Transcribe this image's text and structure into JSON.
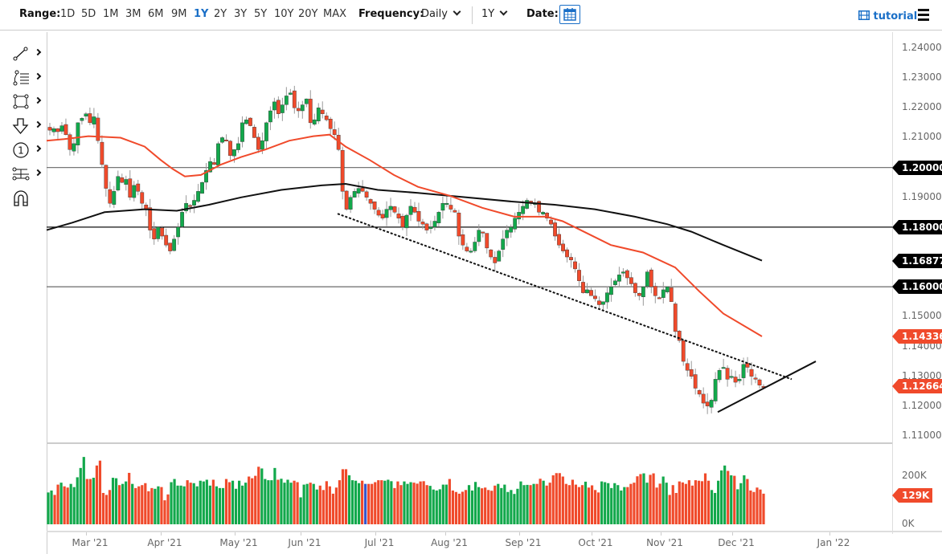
{
  "toolbar": {
    "range_label": "Range:",
    "ranges": [
      "1D",
      "5D",
      "1M",
      "3M",
      "6M",
      "9M",
      "1Y",
      "2Y",
      "3Y",
      "5Y",
      "10Y",
      "20Y",
      "MAX"
    ],
    "active_range": "1Y",
    "frequency_label": "Frequency:",
    "frequency_value": "Daily",
    "period_value": "1Y",
    "date_label": "Date:",
    "tutorial_label": "tutorial",
    "accent_color": "#1a6fc7"
  },
  "drawing_tools": [
    {
      "name": "trend-line-tool",
      "icon": "line-icon"
    },
    {
      "name": "fibonacci-tool",
      "icon": "fib-lines-icon"
    },
    {
      "name": "shape-tool",
      "icon": "rectangle-icon"
    },
    {
      "name": "arrow-tool",
      "icon": "down-arrow-icon"
    },
    {
      "name": "annotation-tool",
      "icon": "number-circle-icon"
    },
    {
      "name": "measure-tool",
      "icon": "measure-icon"
    },
    {
      "name": "magnet-tool",
      "icon": "magnet-icon"
    }
  ],
  "colors": {
    "up": "#12a84b",
    "down": "#f04a2b",
    "ma_fast": "#f04a2b",
    "ma_slow": "#111111",
    "volume_highlight": "#3355cc"
  },
  "chart_data": {
    "type": "candlestick",
    "title": "",
    "frequency": "Daily",
    "range": "1Y",
    "y_axis": {
      "ticks": [
        "1.24000",
        "1.23000",
        "1.22000",
        "1.21000",
        "1.19000",
        "1.15000",
        "1.14000",
        "1.13000",
        "1.12000",
        "1.11000"
      ],
      "ylim": [
        1.107,
        1.243
      ]
    },
    "price_tags": [
      {
        "value": "1.20000",
        "kind": "horizontal-line",
        "color": "black"
      },
      {
        "value": "1.18000",
        "kind": "horizontal-line",
        "color": "black"
      },
      {
        "value": "1.16877",
        "kind": "slow-ma",
        "color": "black"
      },
      {
        "value": "1.16000",
        "kind": "horizontal-line",
        "color": "black"
      },
      {
        "value": "1.14336",
        "kind": "fast-ma",
        "color": "red"
      },
      {
        "value": "1.12664",
        "kind": "last-price",
        "color": "red"
      }
    ],
    "x_axis": {
      "labels": [
        "Mar '21",
        "Apr '21",
        "May '21",
        "Jun '21",
        "Jul '21",
        "Aug '21",
        "Sep '21",
        "Oct '21",
        "Nov '21",
        "Dec '21",
        "Jan '22"
      ]
    },
    "horizontal_lines": [
      1.2,
      1.18,
      1.16
    ],
    "trendlines": [
      {
        "type": "dashed",
        "from": [
          "Jun '21 mid",
          1.1845
        ],
        "to": [
          "Dec '21 end",
          1.129
        ]
      },
      {
        "type": "solid",
        "from": [
          "late Nov '21",
          1.118
        ],
        "to": [
          "late Dec '21",
          1.135
        ]
      }
    ],
    "moving_averages": [
      {
        "name": "MA fast (red)",
        "last": 1.14336
      },
      {
        "name": "MA slow (black)",
        "last": 1.16877
      }
    ],
    "close_series_approx": [
      1.2125,
      1.213,
      1.212,
      1.214,
      1.211,
      1.206,
      1.208,
      1.215,
      1.2165,
      1.218,
      1.215,
      1.217,
      1.209,
      1.201,
      1.193,
      1.188,
      1.192,
      1.197,
      1.195,
      1.196,
      1.19,
      1.194,
      1.192,
      1.188,
      1.186,
      1.179,
      1.176,
      1.18,
      1.177,
      1.174,
      1.172,
      1.176,
      1.18,
      1.185,
      1.188,
      1.187,
      1.189,
      1.192,
      1.195,
      1.199,
      1.202,
      1.201,
      1.208,
      1.21,
      1.209,
      1.204,
      1.206,
      1.208,
      1.215,
      1.216,
      1.214,
      1.21,
      1.206,
      1.209,
      1.215,
      1.219,
      1.222,
      1.218,
      1.221,
      1.224,
      1.225,
      1.22,
      1.219,
      1.221,
      1.223,
      1.215,
      1.216,
      1.22,
      1.218,
      1.216,
      1.213,
      1.211,
      1.206,
      1.192,
      1.186,
      1.19,
      1.192,
      1.193,
      1.192,
      1.19,
      1.188,
      1.186,
      1.184,
      1.183,
      1.186,
      1.187,
      1.185,
      1.183,
      1.18,
      1.184,
      1.187,
      1.185,
      1.182,
      1.181,
      1.179,
      1.18,
      1.182,
      1.185,
      1.188,
      1.188,
      1.186,
      1.185,
      1.177,
      1.174,
      1.172,
      1.172,
      1.175,
      1.179,
      1.178,
      1.173,
      1.17,
      1.168,
      1.172,
      1.176,
      1.179,
      1.18,
      1.183,
      1.185,
      1.187,
      1.189,
      1.188,
      1.188,
      1.185,
      1.185,
      1.183,
      1.181,
      1.177,
      1.174,
      1.172,
      1.17,
      1.169,
      1.166,
      1.162,
      1.158,
      1.159,
      1.157,
      1.156,
      1.154,
      1.155,
      1.158,
      1.16,
      1.162,
      1.164,
      1.165,
      1.163,
      1.161,
      1.158,
      1.157,
      1.16,
      1.165,
      1.16,
      1.157,
      1.156,
      1.159,
      1.16,
      1.155,
      1.145,
      1.142,
      1.135,
      1.132,
      1.13,
      1.126,
      1.124,
      1.121,
      1.12,
      1.122,
      1.129,
      1.132,
      1.133,
      1.129,
      1.13,
      1.128,
      1.129,
      1.134,
      1.133,
      1.13,
      1.129,
      1.127,
      1.1266
    ]
  },
  "volume_data": {
    "ticks": [
      "200K",
      "0K"
    ],
    "last_tag": "129K",
    "values_k": [
      130,
      138,
      120,
      162,
      170,
      155,
      150,
      165,
      152,
      192,
      230,
      275,
      185,
      185,
      190,
      240,
      260,
      128,
      120,
      140,
      190,
      188,
      160,
      165,
      175,
      210,
      165,
      148,
      155,
      160,
      168,
      135,
      148,
      145,
      155,
      152,
      98,
      122,
      172,
      185,
      158,
      158,
      155,
      180,
      170,
      168,
      155,
      178,
      175,
      182,
      158,
      182,
      155,
      148,
      148,
      185,
      172,
      178,
      145,
      178,
      158,
      170,
      195,
      188,
      198,
      235,
      228,
      185,
      180,
      180,
      230,
      182,
      186,
      170,
      182,
      170,
      178,
      172,
      110,
      162,
      165,
      170,
      165,
      142,
      158,
      140,
      176,
      155,
      125,
      150,
      180,
      225,
      225,
      200,
      180,
      178,
      168,
      178,
      165,
      165,
      165,
      172,
      180,
      180,
      178,
      182,
      176,
      148,
      175,
      160,
      175,
      165,
      172,
      170,
      166,
      175,
      176,
      160,
      157,
      142,
      138,
      143,
      162,
      162,
      185,
      138,
      132,
      125,
      133,
      140,
      160,
      138,
      173,
      152,
      147,
      150,
      140,
      137,
      158,
      165,
      148,
      162,
      132,
      140,
      124,
      145,
      175,
      160,
      161,
      160,
      165,
      165,
      186,
      178,
      158,
      170,
      200,
      209,
      209,
      195,
      165,
      160,
      182,
      162,
      152,
      160,
      174,
      150,
      159,
      140,
      130,
      175,
      172,
      168,
      148,
      168,
      160,
      138,
      152,
      152,
      165,
      170,
      196,
      205,
      208,
      170,
      202,
      208,
      150,
      166,
      195,
      170,
      120,
      160,
      128,
      175,
      171,
      165,
      180,
      158,
      180,
      178,
      176,
      208,
      178,
      140,
      128,
      178,
      220,
      240,
      218,
      200,
      198,
      143,
      168,
      200,
      185,
      138,
      132,
      150,
      142,
      125
    ]
  }
}
